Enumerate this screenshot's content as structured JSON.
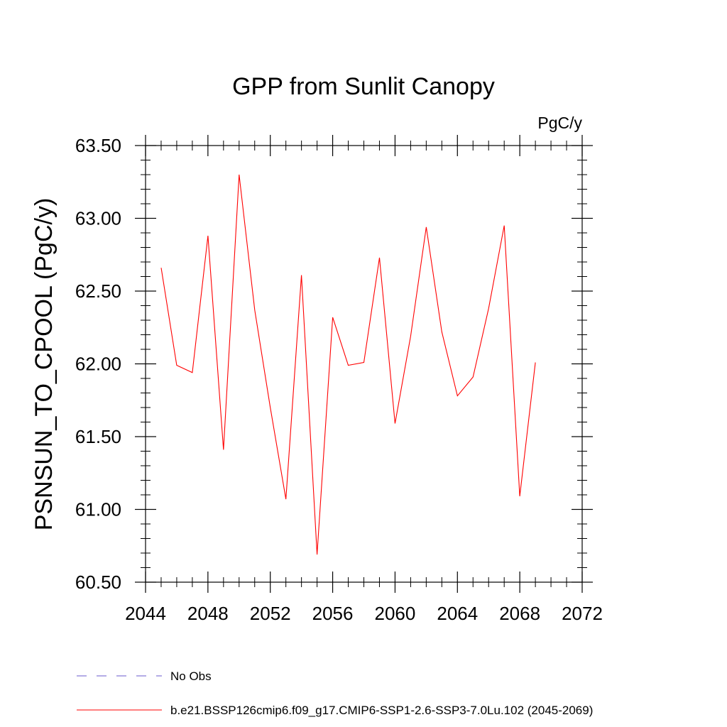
{
  "chart_data": {
    "type": "line",
    "title": "GPP from Sunlit Canopy",
    "units_label": "PgC/y",
    "ylabel": "PSNSUN_TO_CPOOL  (PgC/y)",
    "xlabel": "",
    "xlim": [
      2044,
      2072
    ],
    "ylim": [
      60.5,
      63.5
    ],
    "x_ticks": [
      "2044",
      "2048",
      "2052",
      "2056",
      "2060",
      "2064",
      "2068",
      "2072"
    ],
    "x_tick_values": [
      2044,
      2048,
      2052,
      2056,
      2060,
      2064,
      2068,
      2072
    ],
    "y_ticks": [
      "60.50",
      "61.00",
      "61.50",
      "62.00",
      "62.50",
      "63.00",
      "63.50"
    ],
    "y_tick_values": [
      60.5,
      61.0,
      61.5,
      62.0,
      62.5,
      63.0,
      63.5
    ],
    "grid": false,
    "series": [
      {
        "name": "b.e21.BSSP126cmip6.f09_g17.CMIP6-SSP1-2.6-SSP3-7.0Lu.102 (2045-2069)",
        "color": "#ff0000",
        "style": "solid",
        "x": [
          2045,
          2046,
          2047,
          2048,
          2049,
          2050,
          2051,
          2052,
          2053,
          2054,
          2055,
          2056,
          2057,
          2058,
          2059,
          2060,
          2061,
          2062,
          2063,
          2064,
          2065,
          2066,
          2067,
          2068,
          2069
        ],
        "values": [
          62.66,
          61.99,
          61.94,
          62.88,
          61.41,
          63.3,
          62.37,
          61.7,
          61.07,
          62.61,
          60.69,
          62.32,
          61.99,
          62.01,
          62.73,
          61.59,
          62.19,
          62.94,
          62.22,
          61.78,
          61.91,
          62.38,
          62.95,
          61.09,
          62.01
        ]
      }
    ],
    "legend": [
      {
        "label": "No Obs",
        "color": "#6a5acd",
        "style": "dashed"
      },
      {
        "label": "b.e21.BSSP126cmip6.f09_g17.CMIP6-SSP1-2.6-SSP3-7.0Lu.102 (2045-2069)",
        "color": "#ff0000",
        "style": "solid"
      }
    ],
    "legend_position": "bottom-left"
  }
}
